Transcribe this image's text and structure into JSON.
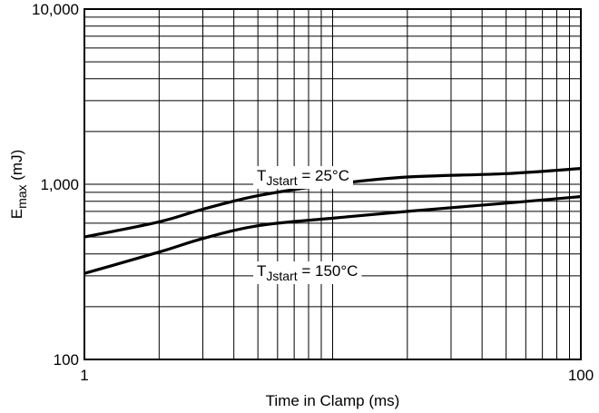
{
  "chart_data": {
    "type": "line",
    "xlabel": "Time in Clamp (ms)",
    "ylabel": {
      "base": "E",
      "sub": "max",
      "rest": " (mJ)"
    },
    "x_scale": "log",
    "y_scale": "log",
    "xlim": [
      1,
      100
    ],
    "ylim": [
      100,
      10000
    ],
    "x_ticks": [
      {
        "value": 1,
        "label": "1"
      },
      {
        "value": 100,
        "label": "100"
      }
    ],
    "y_ticks": [
      {
        "value": 100,
        "label": "100"
      },
      {
        "value": 1000,
        "label": "1,000"
      },
      {
        "value": 10000,
        "label": "10,000"
      }
    ],
    "grid": true,
    "series": [
      {
        "label_parts": {
          "base": "T",
          "sub": "Jstart",
          "rest": " = 25°C"
        },
        "x": [
          1,
          2,
          3,
          5,
          10,
          20,
          50,
          100
        ],
        "y": [
          500,
          610,
          720,
          860,
          1000,
          1100,
          1150,
          1230
        ]
      },
      {
        "label_parts": {
          "base": "T",
          "sub": "Jstart",
          "rest": " = 150°C"
        },
        "x": [
          1,
          2,
          3,
          5,
          10,
          20,
          50,
          100
        ],
        "y": [
          310,
          410,
          490,
          580,
          640,
          700,
          780,
          850
        ]
      }
    ]
  }
}
